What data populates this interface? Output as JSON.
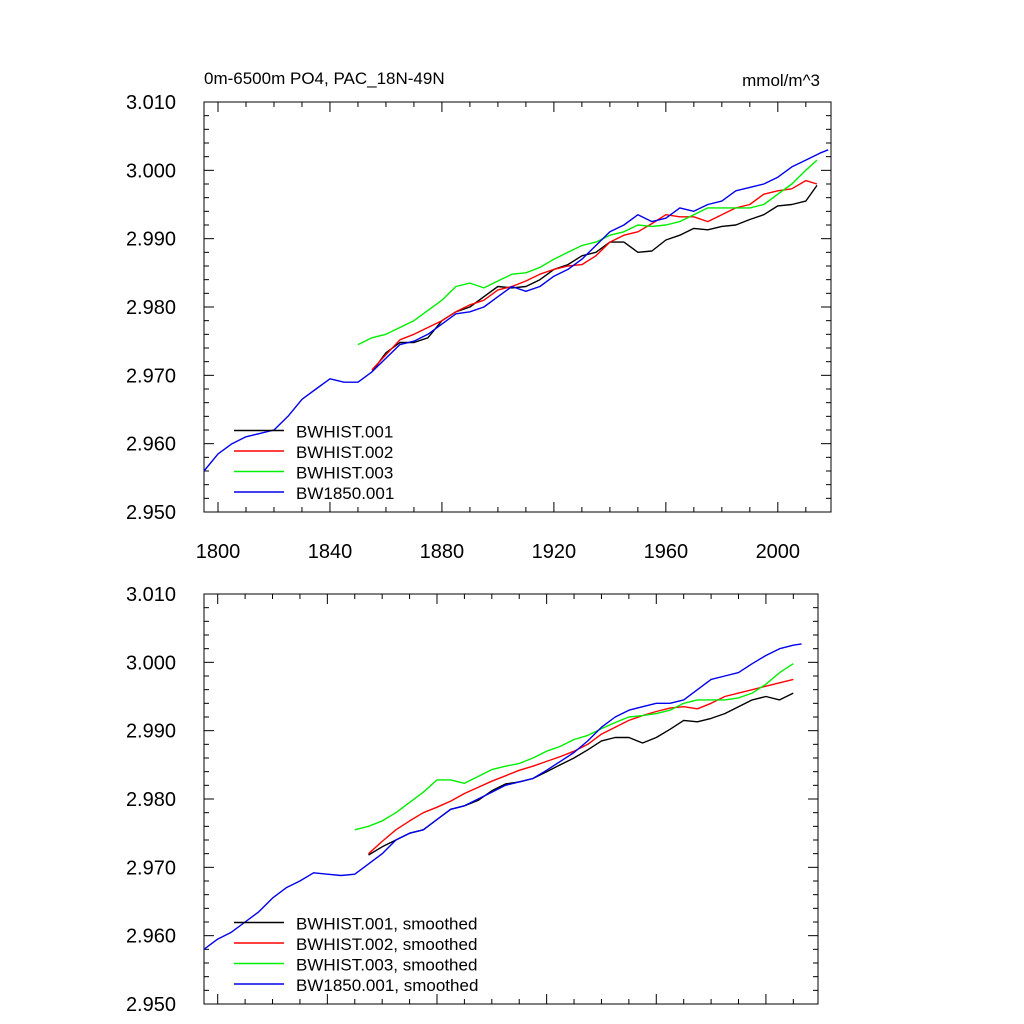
{
  "chart_data": [
    {
      "type": "line",
      "title": "0m-6500m PO4, PAC_18N-49N",
      "units": "mmol/m^3",
      "xlim": [
        1795,
        2019
      ],
      "ylim": [
        2.95,
        3.01
      ],
      "x_ticks": [
        "1800",
        "1840",
        "1880",
        "1920",
        "1960",
        "2000"
      ],
      "y_ticks": [
        "2.950",
        "2.960",
        "2.970",
        "2.980",
        "2.990",
        "3.000",
        "3.010"
      ],
      "legend_position": "bottom-left",
      "series": [
        {
          "name": "BWHIST.001",
          "color": "#000000",
          "x": [
            1855,
            1860,
            1865,
            1870,
            1875,
            1880,
            1885,
            1890,
            1895,
            1900,
            1905,
            1910,
            1915,
            1920,
            1925,
            1930,
            1935,
            1940,
            1945,
            1950,
            1955,
            1960,
            1965,
            1970,
            1975,
            1980,
            1985,
            1990,
            1995,
            2000,
            2005,
            2010,
            2014
          ],
          "y": [
            2.9705,
            2.9733,
            2.9748,
            2.9748,
            2.9755,
            2.978,
            2.9793,
            2.98,
            2.9815,
            2.983,
            2.9828,
            2.983,
            2.984,
            2.9855,
            2.9862,
            2.9875,
            2.988,
            2.9895,
            2.9895,
            2.988,
            2.9882,
            2.9898,
            2.9905,
            2.9915,
            2.9913,
            2.9918,
            2.992,
            2.9928,
            2.9935,
            2.9948,
            2.995,
            2.9955,
            2.9978
          ]
        },
        {
          "name": "BWHIST.002",
          "color": "#ff0000",
          "x": [
            1855,
            1860,
            1865,
            1870,
            1875,
            1880,
            1885,
            1890,
            1895,
            1900,
            1905,
            1910,
            1915,
            1920,
            1925,
            1930,
            1935,
            1940,
            1945,
            1950,
            1955,
            1960,
            1965,
            1970,
            1975,
            1980,
            1985,
            1990,
            1995,
            2000,
            2005,
            2010,
            2014
          ],
          "y": [
            2.9708,
            2.973,
            2.9752,
            2.976,
            2.977,
            2.978,
            2.9793,
            2.9803,
            2.981,
            2.9825,
            2.983,
            2.9838,
            2.9848,
            2.9855,
            2.986,
            2.9862,
            2.9875,
            2.9895,
            2.9905,
            2.991,
            2.9922,
            2.9935,
            2.9932,
            2.9932,
            2.9925,
            2.9935,
            2.9945,
            2.995,
            2.9965,
            2.997,
            2.9973,
            2.9985,
            2.998
          ]
        },
        {
          "name": "BWHIST.003",
          "color": "#00ee00",
          "x": [
            1850,
            1855,
            1860,
            1865,
            1870,
            1875,
            1880,
            1885,
            1890,
            1895,
            1900,
            1905,
            1910,
            1915,
            1920,
            1925,
            1930,
            1935,
            1940,
            1945,
            1950,
            1955,
            1960,
            1965,
            1970,
            1975,
            1980,
            1985,
            1990,
            1995,
            2000,
            2005,
            2010,
            2014
          ],
          "y": [
            2.9745,
            2.9755,
            2.976,
            2.977,
            2.978,
            2.9795,
            2.981,
            2.983,
            2.9835,
            2.9828,
            2.9838,
            2.9848,
            2.985,
            2.9858,
            2.987,
            2.988,
            2.989,
            2.9895,
            2.9905,
            2.991,
            2.992,
            2.9918,
            2.992,
            2.9925,
            2.9935,
            2.9945,
            2.9945,
            2.9945,
            2.9945,
            2.995,
            2.9965,
            2.998,
            3.0,
            3.0015
          ]
        },
        {
          "name": "BW1850.001",
          "color": "#0000ee",
          "x": [
            1795,
            1800,
            1805,
            1810,
            1815,
            1820,
            1825,
            1830,
            1835,
            1840,
            1845,
            1850,
            1855,
            1860,
            1865,
            1870,
            1875,
            1880,
            1885,
            1890,
            1895,
            1900,
            1905,
            1910,
            1915,
            1920,
            1925,
            1930,
            1935,
            1940,
            1945,
            1950,
            1955,
            1960,
            1965,
            1970,
            1975,
            1980,
            1985,
            1990,
            1995,
            2000,
            2005,
            2010,
            2015,
            2018
          ],
          "y": [
            2.956,
            2.9585,
            2.96,
            2.961,
            2.9615,
            2.962,
            2.964,
            2.9665,
            2.968,
            2.9695,
            2.969,
            2.969,
            2.9705,
            2.9725,
            2.9745,
            2.975,
            2.976,
            2.9775,
            2.979,
            2.9793,
            2.98,
            2.9815,
            2.983,
            2.9823,
            2.983,
            2.9845,
            2.9855,
            2.987,
            2.989,
            2.991,
            2.992,
            2.9935,
            2.9925,
            2.993,
            2.9945,
            2.994,
            2.995,
            2.9955,
            2.997,
            2.9975,
            2.998,
            2.999,
            3.0005,
            3.0015,
            3.0025,
            3.003
          ]
        }
      ]
    },
    {
      "type": "line",
      "xlim": [
        1795,
        2019
      ],
      "ylim": [
        2.95,
        3.01
      ],
      "y_ticks": [
        "2.950",
        "2.960",
        "2.970",
        "2.980",
        "2.990",
        "3.000",
        "3.010"
      ],
      "legend_position": "bottom-left",
      "series": [
        {
          "name": "BWHIST.001, smoothed",
          "color": "#000000",
          "x": [
            1855,
            1860,
            1865,
            1870,
            1875,
            1880,
            1885,
            1890,
            1895,
            1900,
            1905,
            1910,
            1915,
            1920,
            1925,
            1930,
            1935,
            1940,
            1945,
            1950,
            1955,
            1960,
            1965,
            1970,
            1975,
            1980,
            1985,
            1990,
            1995,
            2000,
            2005,
            2010
          ],
          "y": [
            2.9718,
            2.973,
            2.974,
            2.975,
            2.9755,
            2.977,
            2.9785,
            2.979,
            2.9798,
            2.9812,
            2.9822,
            2.9825,
            2.983,
            2.984,
            2.985,
            2.986,
            2.9872,
            2.9885,
            2.989,
            2.989,
            2.9882,
            2.989,
            2.9902,
            2.9915,
            2.9913,
            2.9918,
            2.9925,
            2.9935,
            2.9945,
            2.995,
            2.9945,
            2.9955
          ]
        },
        {
          "name": "BWHIST.002, smoothed",
          "color": "#ff0000",
          "x": [
            1855,
            1860,
            1865,
            1870,
            1875,
            1880,
            1885,
            1890,
            1895,
            1900,
            1905,
            1910,
            1915,
            1920,
            1925,
            1930,
            1935,
            1940,
            1945,
            1950,
            1955,
            1960,
            1965,
            1970,
            1975,
            1980,
            1985,
            1990,
            1995,
            2000,
            2005,
            2010
          ],
          "y": [
            2.972,
            2.9738,
            2.9755,
            2.9768,
            2.978,
            2.9788,
            2.9797,
            2.9808,
            2.9817,
            2.9826,
            2.9834,
            2.9842,
            2.9848,
            2.9855,
            2.9862,
            2.987,
            2.988,
            2.9895,
            2.9905,
            2.9915,
            2.9922,
            2.9928,
            2.9933,
            2.9935,
            2.9932,
            2.994,
            2.995,
            2.9955,
            2.996,
            2.9965,
            2.997,
            2.9975
          ]
        },
        {
          "name": "BWHIST.003, smoothed",
          "color": "#00ee00",
          "x": [
            1850,
            1855,
            1860,
            1865,
            1870,
            1875,
            1880,
            1885,
            1890,
            1895,
            1900,
            1905,
            1910,
            1915,
            1920,
            1925,
            1930,
            1935,
            1940,
            1945,
            1950,
            1955,
            1960,
            1965,
            1970,
            1975,
            1980,
            1985,
            1990,
            1995,
            2000,
            2005,
            2010
          ],
          "y": [
            2.9755,
            2.976,
            2.9768,
            2.978,
            2.9795,
            2.981,
            2.9828,
            2.9828,
            2.9823,
            2.9833,
            2.9843,
            2.9848,
            2.9852,
            2.986,
            2.987,
            2.9877,
            2.9887,
            2.9893,
            2.9903,
            2.9912,
            2.992,
            2.9922,
            2.9925,
            2.993,
            2.994,
            2.9945,
            2.9945,
            2.9945,
            2.9948,
            2.9955,
            2.9968,
            2.9985,
            2.9998
          ]
        },
        {
          "name": "BW1850.001, smoothed",
          "color": "#0000ee",
          "x": [
            1795,
            1800,
            1805,
            1810,
            1815,
            1820,
            1825,
            1830,
            1835,
            1840,
            1845,
            1850,
            1855,
            1860,
            1865,
            1870,
            1875,
            1880,
            1885,
            1890,
            1895,
            1900,
            1905,
            1910,
            1915,
            1920,
            1925,
            1930,
            1935,
            1940,
            1945,
            1950,
            1955,
            1960,
            1965,
            1970,
            1975,
            1980,
            1985,
            1990,
            1995,
            2000,
            2005,
            2010,
            2013
          ],
          "y": [
            2.958,
            2.9595,
            2.9605,
            2.962,
            2.9635,
            2.9655,
            2.967,
            2.968,
            2.9692,
            2.969,
            2.9688,
            2.969,
            2.9705,
            2.972,
            2.974,
            2.975,
            2.9755,
            2.977,
            2.9785,
            2.979,
            2.98,
            2.981,
            2.982,
            2.9825,
            2.983,
            2.9842,
            2.9855,
            2.9868,
            2.9885,
            2.9905,
            2.992,
            2.993,
            2.9935,
            2.994,
            2.994,
            2.9945,
            2.996,
            2.9975,
            2.998,
            2.9985,
            2.9998,
            3.001,
            3.002,
            3.0025,
            3.0027
          ]
        }
      ]
    }
  ]
}
